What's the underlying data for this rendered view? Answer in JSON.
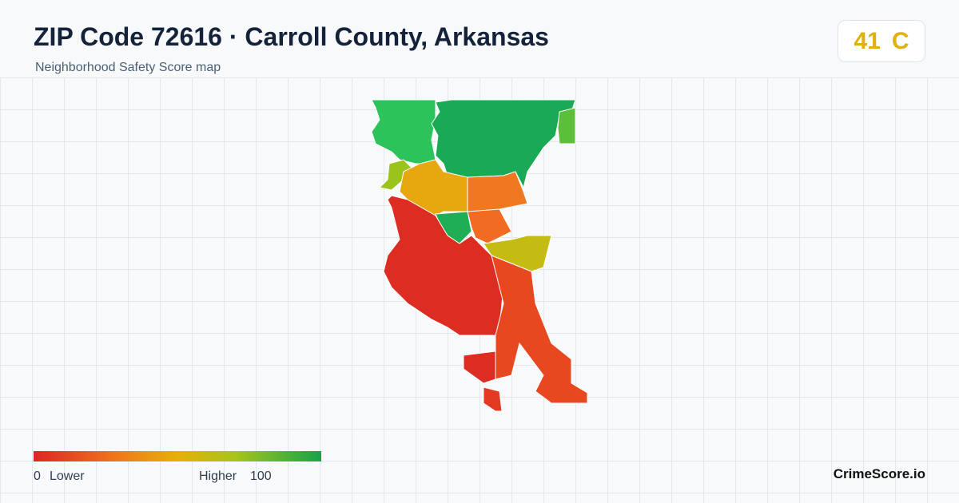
{
  "header": {
    "title": "ZIP Code 72616 · Carroll County, Arkansas",
    "subtitle": "Neighborhood Safety Score map"
  },
  "score": {
    "value": "41",
    "grade": "C"
  },
  "legend": {
    "min": "0",
    "min_label": "Lower",
    "max_label": "Higher",
    "max": "100"
  },
  "brand": "CrimeScore.io"
}
